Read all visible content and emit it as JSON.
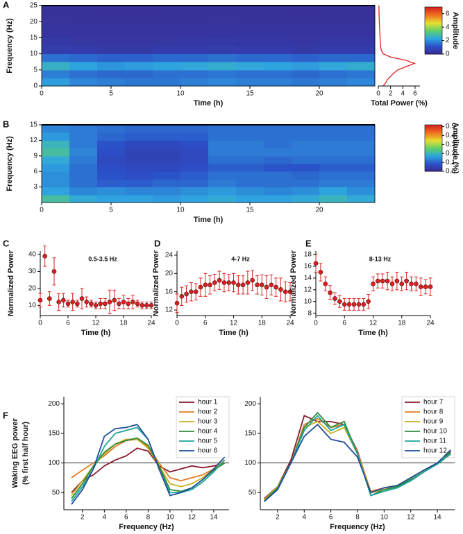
{
  "chart_data": [
    {
      "type": "heatmap",
      "panel": "A",
      "x_label": "Time (h)",
      "y_label": "Frequency (Hz)",
      "xlim": [
        0,
        24
      ],
      "ylim": [
        0,
        25
      ],
      "xticks": [
        0,
        5,
        10,
        15,
        20
      ],
      "yticks": [
        0,
        5,
        10,
        15,
        20,
        25
      ],
      "x_bins": [
        0,
        2,
        4,
        6,
        8,
        10,
        12,
        14,
        16,
        18,
        20,
        22,
        24
      ],
      "y_bins": [
        0,
        2.5,
        5,
        7.5,
        10,
        12.5,
        15,
        17.5,
        20,
        22.5,
        25
      ],
      "z": [
        [
          2.2,
          1.9,
          1.8,
          1.7,
          1.7,
          1.8,
          1.9,
          1.8,
          1.8,
          1.7,
          1.8,
          1.9
        ],
        [
          1.8,
          1.6,
          1.5,
          1.5,
          1.6,
          1.6,
          1.7,
          1.6,
          1.6,
          1.5,
          1.6,
          1.7
        ],
        [
          2.6,
          2.3,
          2.1,
          2.2,
          2.3,
          2.4,
          2.5,
          2.4,
          2.3,
          2.2,
          2.4,
          2.5
        ],
        [
          1.6,
          1.5,
          1.4,
          1.4,
          1.5,
          1.5,
          1.6,
          1.5,
          1.5,
          1.4,
          1.5,
          1.5
        ],
        [
          0.6,
          0.55,
          0.5,
          0.5,
          0.55,
          0.55,
          0.6,
          0.55,
          0.55,
          0.5,
          0.55,
          0.55
        ],
        [
          0.45,
          0.4,
          0.4,
          0.4,
          0.4,
          0.42,
          0.45,
          0.42,
          0.42,
          0.4,
          0.42,
          0.42
        ],
        [
          0.35,
          0.32,
          0.3,
          0.3,
          0.32,
          0.32,
          0.35,
          0.33,
          0.33,
          0.3,
          0.32,
          0.32
        ],
        [
          0.3,
          0.28,
          0.27,
          0.27,
          0.28,
          0.28,
          0.3,
          0.28,
          0.28,
          0.27,
          0.28,
          0.28
        ],
        [
          0.25,
          0.24,
          0.23,
          0.23,
          0.24,
          0.24,
          0.25,
          0.24,
          0.24,
          0.23,
          0.24,
          0.24
        ],
        [
          0.2,
          0.2,
          0.2,
          0.2,
          0.2,
          0.2,
          0.2,
          0.2,
          0.2,
          0.2,
          0.2,
          0.2
        ]
      ],
      "clim": [
        0,
        7
      ],
      "colormap": [
        "#3b2a8f",
        "#2b50c8",
        "#2ea6e0",
        "#5fcf6a",
        "#e8e030",
        "#f07020",
        "#d42020"
      ],
      "colorbar": {
        "label": "Amplitude",
        "ticks": [
          0,
          2,
          4,
          6
        ]
      }
    },
    {
      "type": "profile",
      "x_label": "Total Power (%)",
      "xlim": [
        0,
        6.8
      ],
      "ylim": [
        0,
        25
      ],
      "xticks": [
        0,
        2,
        4,
        6
      ],
      "color": "#e02020",
      "frequencies": [
        0,
        1,
        2,
        3,
        4,
        5,
        6,
        7,
        8,
        9,
        10,
        11,
        12,
        13,
        14,
        15,
        16,
        17,
        18,
        19,
        20,
        21,
        22,
        23,
        24,
        25
      ],
      "values": [
        0.8,
        1.2,
        1.5,
        2,
        2.5,
        3.2,
        4.5,
        5.9,
        4.5,
        2,
        0.8,
        0.5,
        0.4,
        0.35,
        0.3,
        0.3,
        0.25,
        0.25,
        0.2,
        0.2,
        0.15,
        0.15,
        0.12,
        0.12,
        0.1,
        0.1
      ]
    },
    {
      "type": "heatmap",
      "panel": "B",
      "x_label": "Time (h)",
      "y_label": "Frequency (Hz)",
      "xlim": [
        0,
        24
      ],
      "ylim": [
        0,
        15
      ],
      "xticks": [
        0,
        5,
        10,
        15,
        20
      ],
      "yticks": [
        3,
        6,
        9,
        12,
        15
      ],
      "x_bins": [
        0,
        2,
        4,
        6,
        8,
        10,
        12,
        14,
        16,
        18,
        20,
        22,
        24
      ],
      "y_bins": [
        0,
        1.5,
        3,
        4.5,
        6,
        7.5,
        9,
        10.5,
        12,
        13.5,
        15
      ],
      "z": [
        [
          0.22,
          0.18,
          0.17,
          0.17,
          0.16,
          0.17,
          0.18,
          0.17,
          0.17,
          0.18,
          0.2,
          0.18
        ],
        [
          0.17,
          0.14,
          0.15,
          0.14,
          0.14,
          0.15,
          0.16,
          0.15,
          0.14,
          0.15,
          0.17,
          0.15
        ],
        [
          0.15,
          0.12,
          0.1,
          0.1,
          0.11,
          0.11,
          0.13,
          0.12,
          0.12,
          0.12,
          0.13,
          0.13
        ],
        [
          0.15,
          0.12,
          0.09,
          0.08,
          0.09,
          0.1,
          0.12,
          0.12,
          0.12,
          0.11,
          0.12,
          0.12
        ],
        [
          0.16,
          0.12,
          0.08,
          0.07,
          0.07,
          0.08,
          0.1,
          0.1,
          0.09,
          0.09,
          0.1,
          0.1
        ],
        [
          0.18,
          0.13,
          0.07,
          0.06,
          0.06,
          0.07,
          0.12,
          0.12,
          0.11,
          0.12,
          0.12,
          0.12
        ],
        [
          0.22,
          0.14,
          0.08,
          0.06,
          0.06,
          0.07,
          0.13,
          0.13,
          0.13,
          0.13,
          0.13,
          0.13
        ],
        [
          0.2,
          0.13,
          0.09,
          0.07,
          0.07,
          0.08,
          0.13,
          0.13,
          0.12,
          0.13,
          0.13,
          0.13
        ],
        [
          0.16,
          0.13,
          0.11,
          0.1,
          0.1,
          0.1,
          0.12,
          0.12,
          0.12,
          0.12,
          0.12,
          0.12
        ],
        [
          0.14,
          0.13,
          0.12,
          0.11,
          0.11,
          0.11,
          0.12,
          0.12,
          0.12,
          0.12,
          0.12,
          0.12
        ]
      ],
      "clim": [
        0,
        0.52
      ],
      "colormap": [
        "#3b2a8f",
        "#2b50c8",
        "#2ea6e0",
        "#5fcf6a",
        "#e8e030",
        "#f07020",
        "#d42020"
      ],
      "colorbar": {
        "label": "Amplitude (%)",
        "ticks": [
          {
            "value": 0,
            "label": "0.0"
          },
          0.1,
          0.2,
          0.3,
          0.4,
          0.5
        ]
      }
    },
    {
      "type": "scatter",
      "panel": "C",
      "title": "0.5-3.5 Hz",
      "x_label": "Time (h)",
      "y_label": "Normalized Power",
      "xlim": [
        0,
        24
      ],
      "ylim": [
        4,
        42
      ],
      "xticks": [
        0,
        6,
        12,
        18,
        24
      ],
      "yticks": [
        10,
        20,
        30,
        40
      ],
      "color": "#e02020",
      "x": [
        0,
        1,
        2,
        3,
        4,
        5,
        6,
        7,
        8,
        9,
        10,
        11,
        12,
        13,
        14,
        15,
        16,
        17,
        18,
        19,
        20,
        21,
        22,
        23,
        24
      ],
      "values": [
        13,
        39,
        14,
        30,
        12,
        13,
        11,
        12,
        11,
        14,
        12,
        11,
        10,
        11,
        11,
        12,
        13,
        11,
        12,
        11,
        12,
        11,
        10,
        10,
        10
      ],
      "errors": [
        4,
        6,
        4,
        8,
        5,
        4,
        2,
        5,
        2,
        6,
        3,
        2,
        2,
        3,
        3,
        7,
        6,
        3,
        4,
        3,
        4,
        2,
        2,
        2,
        2
      ]
    },
    {
      "type": "scatter",
      "panel": "D",
      "title": "4-7 Hz",
      "x_label": "Time (h)",
      "y_label": "Normalized Power",
      "xlim": [
        0,
        24
      ],
      "ylim": [
        10.8,
        24.9
      ],
      "xticks": [
        0,
        6,
        12,
        18,
        24
      ],
      "yticks": [
        12,
        16,
        20,
        24
      ],
      "color": "#e02020",
      "x": [
        0,
        1,
        2,
        3,
        4,
        5,
        6,
        7,
        8,
        9,
        10,
        11,
        12,
        13,
        14,
        15,
        16,
        17,
        18,
        19,
        20,
        21,
        22,
        23,
        24
      ],
      "values": [
        13.5,
        15,
        15.5,
        16,
        16,
        17,
        17.5,
        17.5,
        18,
        18.5,
        18,
        18,
        18,
        17.5,
        17.5,
        18,
        18.5,
        17.5,
        17.5,
        17,
        17.5,
        17,
        16.5,
        16,
        16
      ],
      "errors": [
        2,
        2,
        1.8,
        2,
        1.8,
        2,
        2.5,
        2,
        1.8,
        2,
        2,
        1.8,
        2,
        2,
        2,
        2.5,
        2.2,
        2,
        2.2,
        2.5,
        2.2,
        2,
        2.5,
        2.2,
        2
      ]
    },
    {
      "type": "scatter",
      "panel": "E",
      "title": "8-13 Hz",
      "x_label": "Time (h)",
      "y_label": "Normalized Power",
      "xlim": [
        0,
        24
      ],
      "ylim": [
        7.6,
        18.6
      ],
      "xticks": [
        0,
        6,
        12,
        18,
        24
      ],
      "yticks": [
        8,
        10,
        12,
        14,
        16,
        18
      ],
      "color": "#e02020",
      "x": [
        0,
        1,
        2,
        3,
        4,
        5,
        6,
        7,
        8,
        9,
        10,
        11,
        12,
        13,
        14,
        15,
        16,
        17,
        18,
        19,
        20,
        21,
        22,
        23,
        24
      ],
      "values": [
        16.5,
        15,
        13,
        11.5,
        10.5,
        10,
        9.5,
        9.5,
        9.5,
        9.5,
        9.5,
        10,
        13,
        13.5,
        13.5,
        13.5,
        13,
        13.5,
        13,
        13.5,
        13,
        13,
        12.5,
        12.5,
        12.5
      ],
      "errors": [
        1.5,
        1.5,
        1.2,
        1.2,
        1,
        1,
        1,
        1,
        1,
        1,
        1,
        1.2,
        1.2,
        1.2,
        1.2,
        1.5,
        1.2,
        1.5,
        1.2,
        1.5,
        1.2,
        1.2,
        1.5,
        1.2,
        1.5
      ]
    },
    {
      "type": "line",
      "panel": "F",
      "x_label": "Frequency (Hz)",
      "y_label": [
        "Waking  EEG power",
        "(% first half hour)"
      ],
      "xlim": [
        0.3,
        15.4
      ],
      "ylim": [
        21,
        212
      ],
      "xticks": [
        2,
        4,
        6,
        8,
        10,
        12,
        14
      ],
      "yticks": [
        50,
        100,
        150,
        200
      ],
      "hline": 100,
      "x": [
        1,
        2,
        3,
        4,
        5,
        6,
        7,
        8,
        9,
        10,
        11,
        12,
        13,
        14,
        15
      ],
      "series": [
        {
          "name": "hour 1",
          "color": "#8b1a2a",
          "values": [
            50,
            70,
            80,
            95,
            105,
            112,
            125,
            120,
            95,
            85,
            90,
            95,
            92,
            95,
            100
          ]
        },
        {
          "name": "hour 2",
          "color": "#e07b20",
          "values": [
            75,
            88,
            100,
            112,
            128,
            138,
            140,
            128,
            100,
            75,
            70,
            75,
            80,
            90,
            100
          ]
        },
        {
          "name": "hour 3",
          "color": "#c8b020",
          "values": [
            45,
            70,
            95,
            115,
            132,
            140,
            140,
            125,
            95,
            65,
            60,
            65,
            75,
            90,
            105
          ]
        },
        {
          "name": "hour 4",
          "color": "#2e8b3a",
          "values": [
            40,
            65,
            95,
            118,
            132,
            138,
            142,
            130,
            95,
            55,
            52,
            58,
            72,
            88,
            100
          ]
        },
        {
          "name": "hour 5",
          "color": "#1aa39a",
          "values": [
            35,
            60,
            90,
            128,
            150,
            155,
            160,
            140,
            90,
            50,
            50,
            55,
            68,
            85,
            105
          ]
        },
        {
          "name": "hour 6",
          "color": "#1f4e9a",
          "values": [
            30,
            55,
            90,
            145,
            158,
            160,
            165,
            140,
            90,
            45,
            50,
            58,
            72,
            90,
            110
          ]
        }
      ]
    },
    {
      "type": "line",
      "x_label": "Frequency (Hz)",
      "xlim": [
        0.7,
        15.3
      ],
      "ylim": [
        21,
        212
      ],
      "xticks": [
        2,
        4,
        6,
        8,
        10,
        12,
        14
      ],
      "yticks": [
        50,
        100,
        150,
        200
      ],
      "hline": 100,
      "x": [
        1,
        2,
        3,
        4,
        5,
        6,
        7,
        8,
        9,
        10,
        11,
        12,
        13,
        14,
        15
      ],
      "series": [
        {
          "name": "hour 7",
          "color": "#8b1a2a",
          "values": [
            40,
            60,
            105,
            180,
            170,
            170,
            165,
            120,
            50,
            55,
            60,
            70,
            85,
            100,
            120
          ]
        },
        {
          "name": "hour 8",
          "color": "#e07b20",
          "values": [
            38,
            58,
            100,
            165,
            175,
            160,
            165,
            118,
            52,
            58,
            62,
            75,
            88,
            100,
            118
          ]
        },
        {
          "name": "hour 9",
          "color": "#c8b020",
          "values": [
            38,
            60,
            100,
            160,
            170,
            150,
            160,
            115,
            50,
            55,
            62,
            75,
            88,
            98,
            115
          ]
        },
        {
          "name": "hour 10",
          "color": "#2e8b3a",
          "values": [
            36,
            58,
            100,
            160,
            185,
            160,
            170,
            115,
            45,
            55,
            60,
            72,
            85,
            100,
            118
          ]
        },
        {
          "name": "hour 11",
          "color": "#1aa39a",
          "values": [
            35,
            55,
            100,
            155,
            180,
            155,
            165,
            115,
            45,
            52,
            58,
            70,
            85,
            98,
            115
          ]
        },
        {
          "name": "hour 12",
          "color": "#1f4e9a",
          "values": [
            35,
            55,
            100,
            145,
            165,
            140,
            135,
            110,
            50,
            58,
            62,
            75,
            88,
            100,
            122
          ]
        }
      ]
    }
  ]
}
